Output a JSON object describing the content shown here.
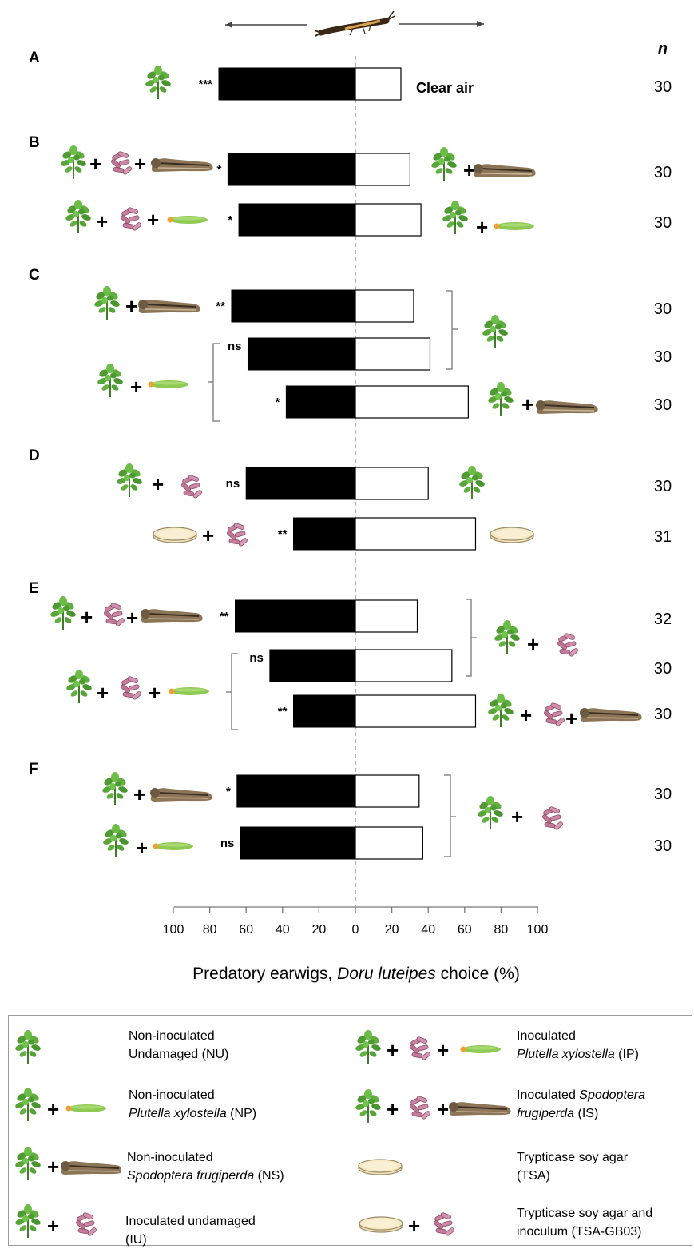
{
  "chart_data": {
    "type": "bar",
    "xlabel_pre": "Predatory earwigs, ",
    "xlabel_species": "Doru luteipes",
    "xlabel_post": " choice (%)",
    "x_ticks_left": [
      "100",
      "80",
      "60",
      "40",
      "20",
      "0"
    ],
    "x_ticks_right": [
      "20",
      "40",
      "60",
      "80",
      "100"
    ],
    "xlim": [
      -100,
      100
    ],
    "n_header": "n",
    "clear_air_label": "Clear air",
    "panels": [
      {
        "label": "A",
        "rows": [
          {
            "left": "NU",
            "right": "Clear air",
            "left_pct": 75,
            "right_pct": 25,
            "sig": "***",
            "n": "30"
          }
        ]
      },
      {
        "label": "B",
        "rows": [
          {
            "left": "IS",
            "right": "NS",
            "left_pct": 70,
            "right_pct": 30,
            "sig": "*",
            "n": "30"
          },
          {
            "left": "IP",
            "right": "NP",
            "left_pct": 64,
            "right_pct": 36,
            "sig": "*",
            "n": "30"
          }
        ]
      },
      {
        "label": "C",
        "rows": [
          {
            "left": "NS",
            "right": "NU",
            "left_pct": 68,
            "right_pct": 32,
            "sig": "**",
            "n": "30"
          },
          {
            "left": "NP",
            "right": "NU",
            "left_pct": 59,
            "right_pct": 41,
            "sig": "ns",
            "n": "30"
          },
          {
            "left": "NP",
            "right": "NS",
            "left_pct": 38,
            "right_pct": 62,
            "sig": "*",
            "n": "30"
          }
        ]
      },
      {
        "label": "D",
        "rows": [
          {
            "left": "IU",
            "right": "NU",
            "left_pct": 60,
            "right_pct": 40,
            "sig": "ns",
            "n": "30"
          },
          {
            "left": "TSA-GB03",
            "right": "TSA",
            "left_pct": 34,
            "right_pct": 66,
            "sig": "**",
            "n": "31"
          }
        ]
      },
      {
        "label": "E",
        "rows": [
          {
            "left": "IS",
            "right": "IU",
            "left_pct": 66,
            "right_pct": 34,
            "sig": "**",
            "n": "32"
          },
          {
            "left": "IP",
            "right": "IU",
            "left_pct": 47,
            "right_pct": 53,
            "sig": "ns",
            "n": "30"
          },
          {
            "left": "IP",
            "right": "IS",
            "left_pct": 34,
            "right_pct": 66,
            "sig": "**",
            "n": "30"
          }
        ]
      },
      {
        "label": "F",
        "rows": [
          {
            "left": "NS",
            "right": "IU",
            "left_pct": 65,
            "right_pct": 35,
            "sig": "*",
            "n": "30"
          },
          {
            "left": "NP",
            "right": "IU",
            "left_pct": 63,
            "right_pct": 37,
            "sig": "ns",
            "n": "30"
          }
        ]
      }
    ]
  },
  "legend": {
    "items": [
      {
        "key": "NU",
        "line1": "Non-inoculated",
        "line2": "Undamaged (NU)",
        "italic": ""
      },
      {
        "key": "IP",
        "line1": "Inoculated",
        "line2_italic": "Plutella xylostella",
        "line2_post": " (IP)"
      },
      {
        "key": "NP",
        "line1": "Non-inoculated",
        "line2_italic": "Plutella xylostella",
        "line2_post": " (NP)"
      },
      {
        "key": "IS",
        "line1_pre": "Inoculated ",
        "line1_italic": "Spodoptera",
        "line2_italic": "frugiperda",
        "line2_post": " (IS)"
      },
      {
        "key": "NS",
        "line1": "Non-inoculated",
        "line2_italic": "Spodoptera frugiperda",
        "line2_post": " (NS)"
      },
      {
        "key": "TSA",
        "line1": "Trypticase soy agar",
        "line2": "(TSA)"
      },
      {
        "key": "IU",
        "line1": "Inoculated undamaged",
        "line2": "(IU)"
      },
      {
        "key": "TSA-GB03",
        "line1": "Trypticase soy agar and",
        "line2": "inoculum (TSA-GB03)"
      }
    ]
  },
  "colors": {
    "bar_left": "#000000",
    "bar_right": "#ffffff",
    "plant": "#5aa63a",
    "bacteria": "#c47a9a",
    "armyworm": "#8a7356",
    "diamondback": "#8fca55",
    "agar": "#f5e6bf"
  }
}
